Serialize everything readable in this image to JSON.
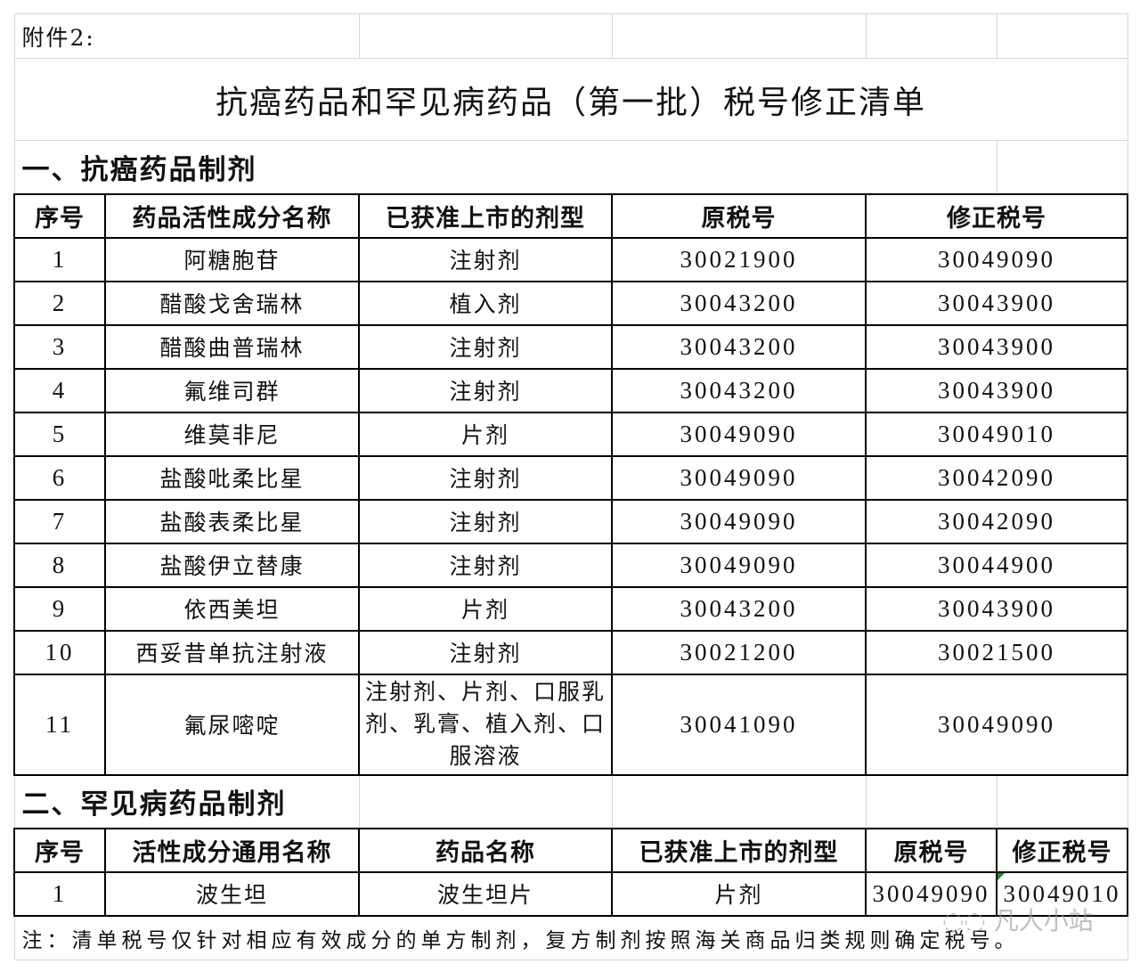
{
  "attachment_label": "附件2:",
  "title": "抗癌药品和罕见病药品（第一批）税号修正清单",
  "section1": {
    "heading": "一、抗癌药品制剂",
    "headers": [
      "序号",
      "药品活性成分名称",
      "已获准上市的剂型",
      "原税号",
      "修正税号"
    ],
    "rows": [
      [
        "1",
        "阿糖胞苷",
        "注射剂",
        "30021900",
        "30049090"
      ],
      [
        "2",
        "醋酸戈舍瑞林",
        "植入剂",
        "30043200",
        "30043900"
      ],
      [
        "3",
        "醋酸曲普瑞林",
        "注射剂",
        "30043200",
        "30043900"
      ],
      [
        "4",
        "氟维司群",
        "注射剂",
        "30043200",
        "30043900"
      ],
      [
        "5",
        "维莫非尼",
        "片剂",
        "30049090",
        "30049010"
      ],
      [
        "6",
        "盐酸吡柔比星",
        "注射剂",
        "30049090",
        "30042090"
      ],
      [
        "7",
        "盐酸表柔比星",
        "注射剂",
        "30049090",
        "30042090"
      ],
      [
        "8",
        "盐酸伊立替康",
        "注射剂",
        "30049090",
        "30044900"
      ],
      [
        "9",
        "依西美坦",
        "片剂",
        "30043200",
        "30043900"
      ],
      [
        "10",
        "西妥昔单抗注射液",
        "注射剂",
        "30021200",
        "30021500"
      ],
      [
        "11",
        "氟尿嘧啶",
        "注射剂、片剂、口服乳剂、乳膏、植入剂、口服溶液",
        "30041090",
        "30049090"
      ]
    ]
  },
  "section2": {
    "heading": "二、罕见病药品制剂",
    "headers": [
      "序号",
      "活性成分通用名称",
      "药品名称",
      "已获准上市的剂型",
      "原税号",
      "修正税号"
    ],
    "rows": [
      [
        "1",
        "波生坦",
        "波生坦片",
        "片剂",
        "30049090",
        "30049010"
      ]
    ]
  },
  "note": "注：清单税号仅针对相应有效成分的单方制剂，复方制剂按照海关商品归类规则确定税号。",
  "watermark": "凡人小站"
}
